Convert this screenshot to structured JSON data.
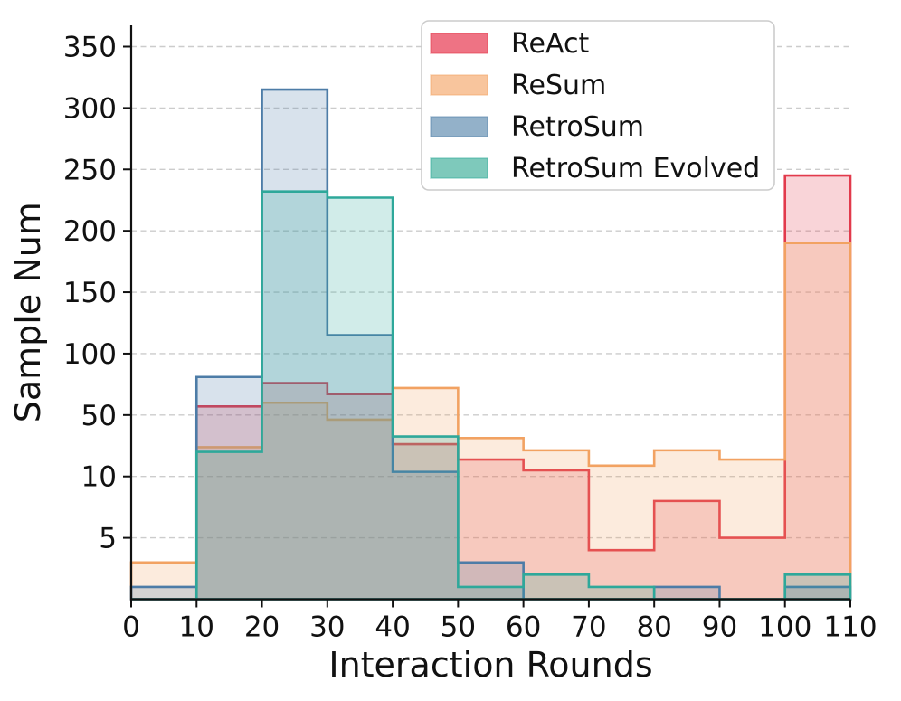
{
  "chart_data": {
    "type": "step-histogram",
    "title": "",
    "xlabel": "Interaction Rounds",
    "ylabel": "Sample Num",
    "bin_edges": [
      0,
      10,
      20,
      30,
      40,
      50,
      60,
      70,
      80,
      90,
      100,
      110
    ],
    "xticks": [
      0,
      10,
      20,
      30,
      40,
      50,
      60,
      70,
      80,
      90,
      100,
      110
    ],
    "yticks": [
      5,
      10,
      50,
      100,
      150,
      200,
      250,
      300,
      350
    ],
    "y_scale": "nonlinear: labeled ticks evenly spaced, piecewise-linear between ticks, 0 at baseline",
    "xlim": [
      0,
      110
    ],
    "grid": "horizontal dashed gridlines at each y tick",
    "legend_position": "upper center",
    "fill_opacity": 0.22,
    "axis_color": "#111111",
    "grid_color": "#cccccc",
    "legend_border_color": "#cccccc",
    "series": [
      {
        "name": "ReAct",
        "edge_color": "#e23a4c",
        "legend_color": "#ee7384",
        "values": [
          0,
          57,
          76,
          67,
          31,
          21,
          14,
          4,
          8,
          5,
          245
        ]
      },
      {
        "name": "ReSum",
        "edge_color": "#f2a262",
        "legend_color": "#f8c59d",
        "values": [
          3,
          29,
          60,
          47,
          72,
          35,
          27,
          17,
          27,
          21,
          190
        ]
      },
      {
        "name": "RetroSum",
        "edge_color": "#4d7ca7",
        "legend_color": "#93b1c9",
        "values": [
          1,
          81,
          315,
          115,
          13,
          3,
          0,
          0,
          1,
          0,
          1
        ]
      },
      {
        "name": "RetroSum Evolved",
        "edge_color": "#2ea89a",
        "legend_color": "#7ec9bb",
        "values": [
          0,
          26,
          232,
          227,
          36,
          1,
          2,
          1,
          0,
          0,
          2
        ]
      }
    ]
  }
}
